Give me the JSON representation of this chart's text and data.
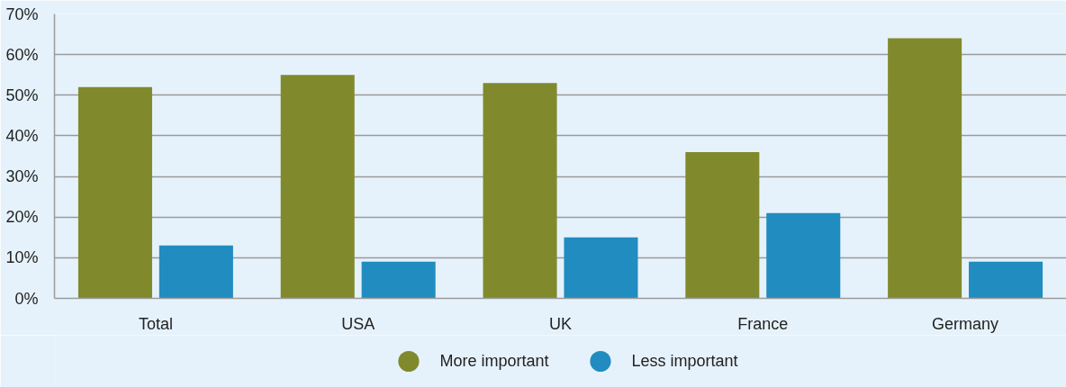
{
  "chart_data": {
    "type": "bar",
    "categories": [
      "Total",
      "USA",
      "UK",
      "France",
      "Germany"
    ],
    "series": [
      {
        "name": "More important",
        "color": "#808a2d",
        "values": [
          52,
          55,
          53,
          36,
          64
        ]
      },
      {
        "name": "Less important",
        "color": "#218cbf",
        "values": [
          13,
          9,
          15,
          21,
          9
        ]
      }
    ],
    "ylim": [
      0,
      70
    ],
    "yticks": [
      {
        "value": 0,
        "label": "0%"
      },
      {
        "value": 10,
        "label": "10%"
      },
      {
        "value": 20,
        "label": "20%"
      },
      {
        "value": 30,
        "label": "30%"
      },
      {
        "value": 40,
        "label": "40%"
      },
      {
        "value": 50,
        "label": "50%"
      },
      {
        "value": 60,
        "label": "60%"
      },
      {
        "value": 70,
        "label": "70%"
      }
    ],
    "grid": "y",
    "legend": "bottom"
  }
}
